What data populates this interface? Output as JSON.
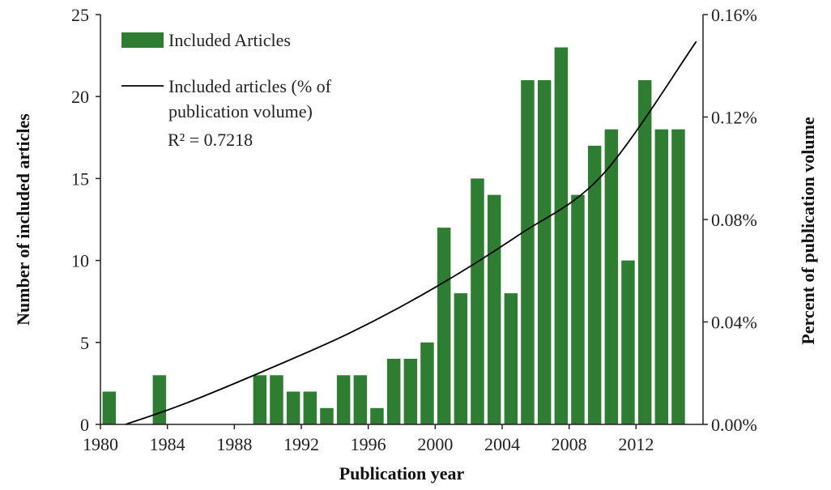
{
  "chart_data": {
    "type": "bar",
    "x_start": 1981,
    "x_end": 2015,
    "values": [
      2,
      0,
      0,
      3,
      0,
      0,
      0,
      0,
      0,
      3,
      3,
      2,
      2,
      1,
      3,
      3,
      1,
      4,
      4,
      5,
      12,
      8,
      15,
      14,
      8,
      21,
      21,
      23,
      14,
      17,
      18,
      10,
      21,
      18,
      18
    ],
    "bar_series_name": "Included Articles",
    "bar_color": "#2e7d32",
    "trend": {
      "name_line1": "Included articles (% of",
      "name_line2": "publication volume)",
      "r2_label": "R² = 0.7218",
      "points": [
        [
          1981.5,
          0.0
        ],
        [
          1985,
          0.008
        ],
        [
          1990,
          0.0215
        ],
        [
          1995,
          0.036
        ],
        [
          2000,
          0.0535
        ],
        [
          2005,
          0.074
        ],
        [
          2010,
          0.0975
        ],
        [
          2015.6,
          0.1495
        ]
      ],
      "color": "#000000"
    },
    "x_ticks": [
      "1980",
      "1984",
      "1988",
      "1992",
      "1996",
      "2000",
      "2004",
      "2008",
      "2012"
    ],
    "x_tick_values": [
      1980,
      1984,
      1988,
      1992,
      1996,
      2000,
      2004,
      2008,
      2012
    ],
    "y_left_ticks": [
      "0",
      "5",
      "10",
      "15",
      "20",
      "25"
    ],
    "y_left_tick_values": [
      0,
      5,
      10,
      15,
      20,
      25
    ],
    "y_right_ticks": [
      "0.00%",
      "0.04%",
      "0.08%",
      "0.12%",
      "0.16%"
    ],
    "y_right_tick_values": [
      0,
      0.04,
      0.08,
      0.12,
      0.16
    ],
    "ylim_left": [
      0,
      25
    ],
    "ylim_right": [
      0,
      0.16
    ],
    "xlim": [
      1980,
      2016
    ],
    "xlabel": "Publication year",
    "ylabel_left": "Number of included articles",
    "ylabel_right": "Percent of publication volume",
    "legend_position": "top-left",
    "grid": false
  }
}
